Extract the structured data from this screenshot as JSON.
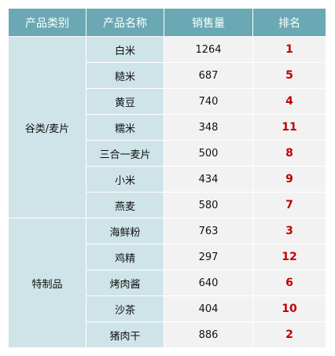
{
  "headers": [
    "产品类别",
    "产品名称",
    "销售量",
    "排名"
  ],
  "groups": [
    {
      "category": "谷类/麦片",
      "rows": [
        {
          "name": "白米",
          "sales": "1264",
          "rank": "1"
        },
        {
          "name": "糙米",
          "sales": "687",
          "rank": "5"
        },
        {
          "name": "黄豆",
          "sales": "740",
          "rank": "4"
        },
        {
          "name": "糯米",
          "sales": "348",
          "rank": "11"
        },
        {
          "name": "三合一麦片",
          "sales": "500",
          "rank": "8"
        },
        {
          "name": "小米",
          "sales": "434",
          "rank": "9"
        },
        {
          "name": "燕麦",
          "sales": "580",
          "rank": "7"
        }
      ]
    },
    {
      "category": "特制品",
      "rows": [
        {
          "name": "海鲜粉",
          "sales": "763",
          "rank": "3"
        },
        {
          "name": "鸡精",
          "sales": "297",
          "rank": "12"
        },
        {
          "name": "烤肉酱",
          "sales": "640",
          "rank": "6"
        },
        {
          "name": "沙茶",
          "sales": "404",
          "rank": "10"
        },
        {
          "name": "猪肉干",
          "sales": "886",
          "rank": "2"
        }
      ]
    }
  ],
  "colors": {
    "header_bg": "#6aa9b3",
    "label_bg": "#cfe4e8",
    "value_bg": "#f2f2f2",
    "rank_color": "#c00000"
  }
}
